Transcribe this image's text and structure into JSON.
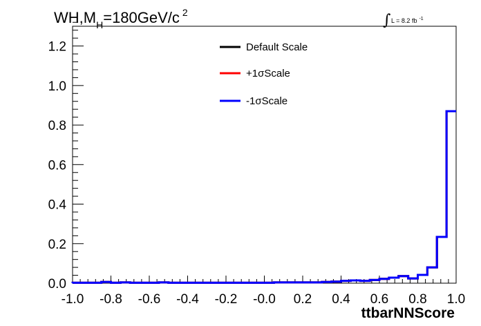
{
  "chart_data": {
    "type": "line",
    "title": {
      "prefix": "WH,M",
      "subscript": "H",
      "middle": "=180GeV/c",
      "superscript": "2"
    },
    "xlabel": "ttbarNNScore",
    "ylabel": "",
    "xlim": [
      -1.0,
      1.0
    ],
    "ylim": [
      0.0,
      1.3
    ],
    "x_ticks": [
      "-1.0",
      "-0.8",
      "-0.6",
      "-0.4",
      "-0.2",
      "-0.0",
      "0.2",
      "0.4",
      "0.6",
      "0.8",
      "1.0"
    ],
    "y_ticks": [
      "0.0",
      "0.2",
      "0.4",
      "0.6",
      "0.8",
      "1.0",
      "1.2"
    ],
    "luminosity": {
      "text": "L = 8.2 fb",
      "superscript": "-1"
    },
    "legend": {
      "placement": "top-center",
      "entries": [
        {
          "name": "Default Scale",
          "color": "#000000"
        },
        {
          "name": "+1σScale",
          "color": "#ff0000"
        },
        {
          "name": "-1σScale",
          "color": "#0000ff"
        }
      ]
    },
    "bin_edges": [
      -1.0,
      -0.95,
      -0.9,
      -0.85,
      -0.8,
      -0.75,
      -0.7,
      -0.65,
      -0.6,
      -0.55,
      -0.5,
      -0.45,
      -0.4,
      -0.35,
      -0.3,
      -0.25,
      -0.2,
      -0.15,
      -0.1,
      -0.05,
      0.0,
      0.05,
      0.1,
      0.15,
      0.2,
      0.25,
      0.3,
      0.35,
      0.4,
      0.45,
      0.5,
      0.55,
      0.6,
      0.65,
      0.7,
      0.75,
      0.8,
      0.85,
      0.9,
      0.95,
      1.0
    ],
    "series": [
      {
        "name": "Default Scale",
        "color": "#000000",
        "values": [
          0.002,
          0.002,
          0.002,
          0.006,
          0.002,
          0.004,
          0.002,
          0.002,
          0.002,
          0.004,
          0.002,
          0.002,
          0.002,
          0.002,
          0.002,
          0.002,
          0.002,
          0.002,
          0.002,
          0.002,
          0.002,
          0.004,
          0.004,
          0.004,
          0.004,
          0.004,
          0.006,
          0.008,
          0.012,
          0.014,
          0.012,
          0.016,
          0.022,
          0.028,
          0.036,
          0.024,
          0.042,
          0.08,
          0.234,
          0.87
        ]
      },
      {
        "name": "+1σScale",
        "color": "#ff0000",
        "values": [
          0.002,
          0.002,
          0.002,
          0.006,
          0.002,
          0.004,
          0.002,
          0.002,
          0.002,
          0.004,
          0.002,
          0.002,
          0.002,
          0.002,
          0.002,
          0.002,
          0.002,
          0.002,
          0.002,
          0.002,
          0.002,
          0.004,
          0.004,
          0.004,
          0.004,
          0.004,
          0.006,
          0.008,
          0.012,
          0.014,
          0.012,
          0.016,
          0.022,
          0.028,
          0.036,
          0.024,
          0.042,
          0.08,
          0.234,
          0.87
        ]
      },
      {
        "name": "-1σScale",
        "color": "#0000ff",
        "values": [
          0.002,
          0.002,
          0.002,
          0.006,
          0.002,
          0.004,
          0.002,
          0.002,
          0.002,
          0.004,
          0.002,
          0.002,
          0.002,
          0.002,
          0.002,
          0.002,
          0.002,
          0.002,
          0.002,
          0.002,
          0.002,
          0.004,
          0.004,
          0.004,
          0.004,
          0.004,
          0.006,
          0.008,
          0.012,
          0.014,
          0.012,
          0.016,
          0.022,
          0.028,
          0.036,
          0.024,
          0.042,
          0.08,
          0.234,
          0.87
        ]
      }
    ]
  }
}
